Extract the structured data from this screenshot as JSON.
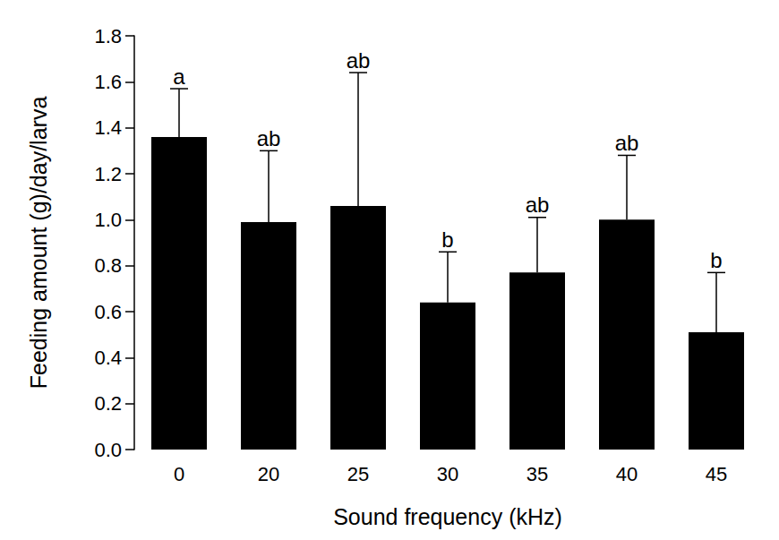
{
  "chart_data": {
    "type": "bar",
    "x_label": "Sound frequency (kHz)",
    "y_label": "Feeding amount (g)/day/larva",
    "categories": [
      "0",
      "20",
      "25",
      "30",
      "35",
      "40",
      "45"
    ],
    "values": [
      1.36,
      0.99,
      1.06,
      0.64,
      0.77,
      1.0,
      0.51
    ],
    "errors": [
      0.21,
      0.31,
      0.58,
      0.22,
      0.24,
      0.28,
      0.26
    ],
    "annotations": [
      "a",
      "ab",
      "ab",
      "b",
      "ab",
      "ab",
      "b"
    ],
    "color": "#000000",
    "ylim": [
      0,
      1.8
    ],
    "yticks": [
      {
        "value": 0,
        "label": "0.0"
      },
      0.2,
      0.4,
      0.6,
      0.8,
      {
        "value": 1.0,
        "label": "1.0"
      },
      1.2,
      1.4,
      1.6,
      1.8
    ],
    "grid": false
  }
}
